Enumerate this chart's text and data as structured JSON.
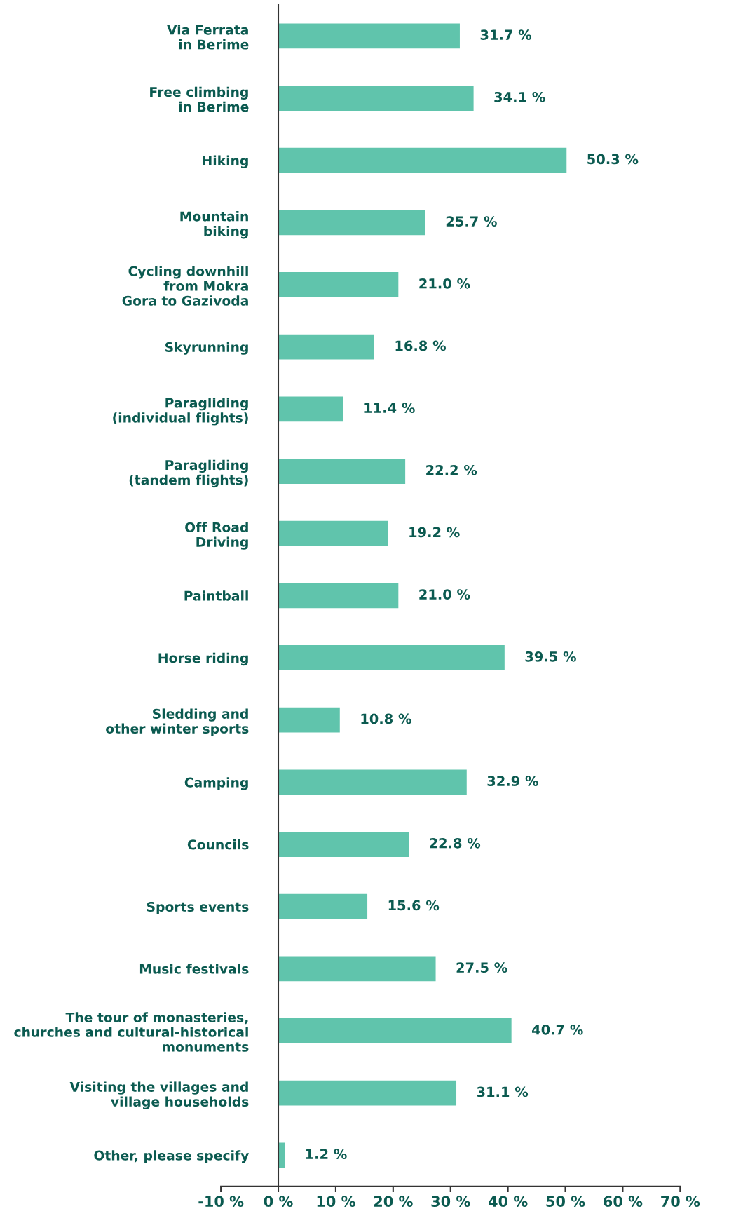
{
  "chart_data": {
    "type": "bar",
    "orientation": "horizontal",
    "categories": [
      "Via Ferrata\nin Berime",
      "Free climbing\nin Berime",
      "Hiking",
      "Mountain\nbiking",
      "Cycling downhill\nfrom Mokra\nGora to Gazivoda",
      "Skyrunning",
      "Paragliding\n(individual flights)",
      "Paragliding\n(tandem flights)",
      "Off Road\nDriving",
      "Paintball",
      "Horse riding",
      "Sledding and\nother winter sports",
      "Camping",
      "Councils",
      "Sports events",
      "Music festivals",
      "The tour of monasteries,\nchurches and cultural-historical\nmonuments",
      "Visiting the villages and\nvillage households",
      "Other, please specify"
    ],
    "values": [
      31.7,
      34.1,
      50.3,
      25.7,
      21.0,
      16.8,
      11.4,
      22.2,
      19.2,
      21.0,
      39.5,
      10.8,
      32.9,
      22.8,
      15.6,
      27.5,
      40.7,
      31.1,
      1.2
    ],
    "value_labels": [
      "31.7 %",
      "34.1 %",
      "50.3 %",
      "25.7 %",
      "21.0 %",
      "16.8 %",
      "11.4 %",
      "22.2 %",
      "19.2 %",
      "21.0 %",
      "39.5 %",
      "10.8 %",
      "32.9 %",
      "22.8 %",
      "15.6 %",
      "27.5 %",
      "40.7 %",
      "31.1 %",
      "1.2 %"
    ],
    "color": "#60c4ac",
    "xlim": [
      -10,
      70
    ],
    "xticks": [
      {
        "value": -10,
        "label": "-10 %"
      },
      {
        "value": 0,
        "label": "0 %"
      },
      {
        "value": 10,
        "label": "10 %"
      },
      {
        "value": 20,
        "label": "20 %"
      },
      {
        "value": 30,
        "label": "30 %"
      },
      {
        "value": 40,
        "label": "40 %"
      },
      {
        "value": 50,
        "label": "50 %"
      },
      {
        "value": 60,
        "label": "60 %"
      },
      {
        "value": 70,
        "label": "70 %"
      }
    ],
    "grid": false,
    "legend": false
  }
}
